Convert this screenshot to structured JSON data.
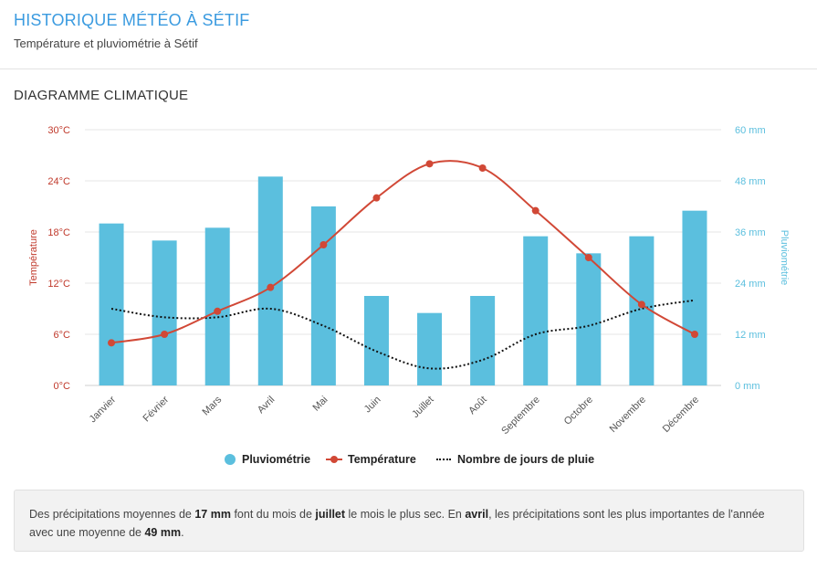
{
  "header": {
    "title": "HISTORIQUE MÉTÉO À SÉTIF",
    "subtitle": "Température et pluviométrie à Sétif"
  },
  "section": {
    "title": "DIAGRAMME CLIMATIQUE"
  },
  "colors": {
    "bar": "#5bbfde",
    "temperature": "#d14836",
    "rain_days": "#111111",
    "left_axis": "#c0392b",
    "right_axis": "#5bbfde"
  },
  "chart_data": {
    "type": "bar",
    "categories": [
      "Janvier",
      "Février",
      "Mars",
      "Avril",
      "Mai",
      "Juin",
      "Juillet",
      "Août",
      "Septembre",
      "Octobre",
      "Novembre",
      "Décembre"
    ],
    "series": [
      {
        "name": "Pluviométrie",
        "type": "bar",
        "axis": "right",
        "values": [
          38,
          34,
          37,
          49,
          42,
          21,
          17,
          21,
          35,
          31,
          35,
          41
        ]
      },
      {
        "name": "Température",
        "type": "line",
        "axis": "left",
        "values": [
          5,
          6,
          8.7,
          11.5,
          16.5,
          22,
          26,
          25.5,
          20.5,
          15,
          9.5,
          6
        ]
      },
      {
        "name": "Nombre de jours de pluie",
        "type": "line",
        "style": "dotted",
        "axis": "left",
        "values": [
          9,
          8,
          8,
          9,
          7,
          4,
          2,
          3,
          6,
          7,
          9,
          10
        ]
      }
    ],
    "left_axis": {
      "label": "Température",
      "min": 0,
      "max": 30,
      "ticks": [
        "0°C",
        "6°C",
        "12°C",
        "18°C",
        "24°C",
        "30°C"
      ]
    },
    "right_axis": {
      "label": "Pluviométrie",
      "min": 0,
      "max": 60,
      "ticks": [
        "0 mm",
        "12 mm",
        "24 mm",
        "36 mm",
        "48 mm",
        "60 mm"
      ]
    },
    "grid": true,
    "legend": "bottom"
  },
  "summary": {
    "p1": "Des précipitations moyennes de ",
    "b1": "17 mm",
    "p2": " font du mois de ",
    "b2": "juillet",
    "p3": " le mois le plus sec. En ",
    "b3": "avril",
    "p4": ", les précipitations sont les plus importantes de l'année avec une moyenne de ",
    "b4": "49 mm",
    "p5": "."
  }
}
